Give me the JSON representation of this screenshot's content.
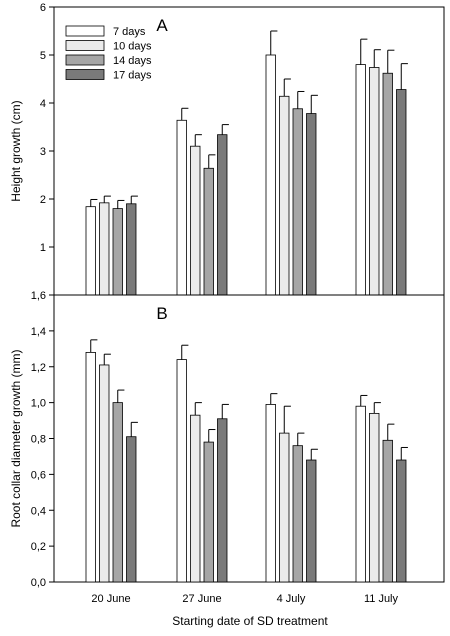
{
  "xlabel": "Starting date of SD treatment",
  "chart_data": [
    {
      "type": "bar",
      "panel_label": "A",
      "ylabel": "Height growth (cm)",
      "ylim": [
        0,
        6
      ],
      "yticks": [
        1,
        2,
        3,
        4,
        5,
        6
      ],
      "ytick_labels": [
        "1",
        "2",
        "3",
        "4",
        "5",
        "6"
      ],
      "categories": [
        "20 June",
        "27 June",
        "4 July",
        "11 July"
      ],
      "legend_position": "top-left",
      "series": [
        {
          "name": "7 days",
          "color": "#ffffff",
          "values": [
            1.84,
            3.64,
            5.0,
            4.8
          ],
          "errors": [
            0.15,
            0.25,
            0.5,
            0.53
          ]
        },
        {
          "name": "10 days",
          "color": "#ebebeb",
          "values": [
            1.92,
            3.1,
            4.14,
            4.74
          ],
          "errors": [
            0.14,
            0.24,
            0.36,
            0.37
          ]
        },
        {
          "name": "14 days",
          "color": "#a6a6a6",
          "values": [
            1.8,
            2.64,
            3.88,
            4.62
          ],
          "errors": [
            0.17,
            0.28,
            0.36,
            0.48
          ]
        },
        {
          "name": "17 days",
          "color": "#7a7a7a",
          "values": [
            1.9,
            3.34,
            3.78,
            4.28
          ],
          "errors": [
            0.16,
            0.21,
            0.38,
            0.54
          ]
        }
      ]
    },
    {
      "type": "bar",
      "panel_label": "B",
      "ylabel": "Root collar diameter growth (mm)",
      "ylim": [
        0,
        1.6
      ],
      "yticks": [
        0,
        0.2,
        0.4,
        0.6,
        0.8,
        1.0,
        1.2,
        1.4,
        1.6
      ],
      "ytick_labels": [
        "0,0",
        "0,2",
        "0,4",
        "0,6",
        "0,8",
        "1,0",
        "1,2",
        "1,4",
        "1,6"
      ],
      "categories": [
        "20 June",
        "27 June",
        "4 July",
        "11 July"
      ],
      "series": [
        {
          "name": "7 days",
          "color": "#ffffff",
          "values": [
            1.28,
            1.24,
            0.99,
            0.98
          ],
          "errors": [
            0.07,
            0.08,
            0.06,
            0.06
          ]
        },
        {
          "name": "10 days",
          "color": "#ebebeb",
          "values": [
            1.21,
            0.93,
            0.83,
            0.94
          ],
          "errors": [
            0.06,
            0.07,
            0.15,
            0.06
          ]
        },
        {
          "name": "14 days",
          "color": "#a6a6a6",
          "values": [
            1.0,
            0.78,
            0.76,
            0.79
          ],
          "errors": [
            0.07,
            0.07,
            0.07,
            0.09
          ]
        },
        {
          "name": "17 days",
          "color": "#7a7a7a",
          "values": [
            0.81,
            0.91,
            0.68,
            0.68
          ],
          "errors": [
            0.08,
            0.08,
            0.06,
            0.07
          ]
        }
      ]
    }
  ]
}
